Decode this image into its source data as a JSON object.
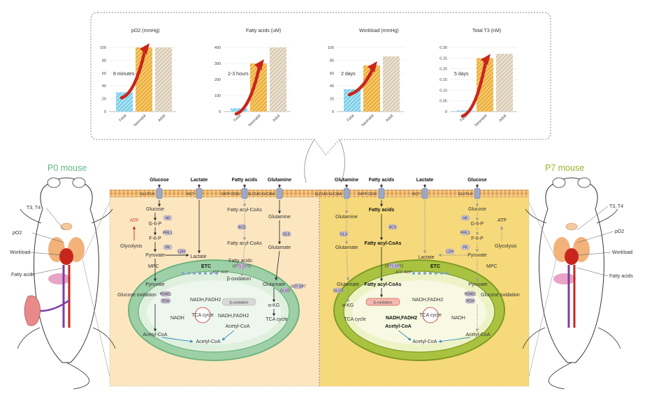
{
  "charts": [
    {
      "title": "pO2 (mmHg)",
      "ticks": [
        "100",
        "80",
        "60",
        "40",
        "20",
        "0"
      ],
      "categories": [
        "Fetal",
        "Neonatal",
        "Adult"
      ],
      "values": [
        30,
        100,
        100
      ],
      "ymax": 100,
      "annotation": "8 minutes"
    },
    {
      "title": "Fatty acids (uM)",
      "ticks": [
        "400",
        "300",
        "200",
        "100",
        "0"
      ],
      "categories": [
        "Fetal",
        "Neonatal",
        "Adult"
      ],
      "values": [
        20,
        300,
        400
      ],
      "ymax": 400,
      "annotation": "2-3 hours"
    },
    {
      "title": "Workload (mmHg)",
      "ticks": [
        "100",
        "80",
        "60",
        "40",
        "20",
        "0"
      ],
      "categories": [
        "Fetal",
        "Neonatal",
        "Adult"
      ],
      "values": [
        35,
        72,
        86
      ],
      "ymax": 100,
      "annotation": "2 days"
    },
    {
      "title": "Total T3 (nM)",
      "ticks": [
        "0.30",
        "0.25",
        "0.20",
        "0.15",
        "0.10",
        "0.05",
        "0"
      ],
      "categories": [
        "Fetal",
        "Neonatal",
        "Adult"
      ],
      "values": [
        0.005,
        0.25,
        0.27
      ],
      "ymax": 0.3,
      "annotation": "5 days"
    }
  ],
  "colors": {
    "fetal": "#59c3e3",
    "neonatal": "#efa72c",
    "adult": "#c9b79a",
    "arrow": "#c8261d",
    "left_cell": "#fbe6c0",
    "right_cell": "#f6d97a",
    "mito_left": "#9ed0a8",
    "mito_right": "#a9c240",
    "membrane": "#e9b66a"
  },
  "labels": {
    "p0": "P0 mouse",
    "p7": "P7 mouse",
    "left_mouse": [
      "T3, T4",
      "pO2",
      "Workload",
      "Fatty acids"
    ],
    "right_mouse": [
      "T3, T4",
      "pO2",
      "Workload",
      "Fatty acids"
    ]
  },
  "left_cell": {
    "inputs": [
      "Glucose",
      "Lactate",
      "Fatty acids",
      "Glutamine"
    ],
    "transporters": [
      "GLUT1/4",
      "MCT",
      "FATP CD36",
      "SLC1A5 SLC38A"
    ],
    "glycolysis": [
      "Glucose",
      "G-6-P",
      "F-6-P",
      "Pyruvate"
    ],
    "enzymes": [
      "HK",
      "PFK-1",
      "PK",
      "LDH",
      "ACS",
      "GLS",
      "CPT1 CPT2",
      "GLUD",
      "GOT GPT",
      "PDHE1",
      "PDH"
    ],
    "side": [
      "ATP",
      "Glycolysis"
    ],
    "misc": [
      "Lactate",
      "MPC",
      "ETC",
      "Fatty acyl-CoAs",
      "Fatty acyl-CoAs",
      "Glutamine",
      "Glutamate",
      "Glutamate",
      "α-KG",
      "TCA cycle",
      "β-oxidation",
      "Pyruvate",
      "Glucose oxidation",
      "NADH",
      "NADH,FADH2",
      "NADH,FADH2",
      "TCA cycle",
      "Acetyl-CoA",
      "Acetyl-CoA",
      "Acetyl-CoA",
      "Fatty acids",
      "ATP",
      "ADP"
    ]
  },
  "right_cell": {
    "inputs": [
      "Glutamine",
      "Fatty acids",
      "Lactate",
      "Glucose"
    ],
    "transporters": [
      "SLC1A5 SLC38A",
      "FATP CD36",
      "MCT",
      "GLUT1/4"
    ],
    "glycolysis": [
      "Glucose",
      "G-6-P",
      "F-6-P",
      "Pyruvate"
    ],
    "enzymes": [
      "GLS",
      "ACS",
      "HK",
      "PFK-1",
      "PK",
      "LDH",
      "CPT1 CPT2",
      "GLUD",
      "PDHE1",
      "PDH"
    ],
    "side": [
      "ATP",
      "Glycolysis"
    ],
    "misc": [
      "Glutamine",
      "Glutamate",
      "Fatty acids",
      "Fatty acyl-CoAs",
      "Fatty acyl-CoAs",
      "Glutamate",
      "α-KG",
      "TCA cycle",
      "β-oxidation",
      "ETC",
      "Lactate",
      "MPC",
      "Pyruvate",
      "Glucose oxidation",
      "NADH",
      "NADH,FADH2",
      "NADH,FADH2",
      "TCA cycle",
      "Acetyl-CoA",
      "Acetyl-CoA",
      "Acetyl-CoA",
      "ATP",
      "ADP"
    ]
  }
}
